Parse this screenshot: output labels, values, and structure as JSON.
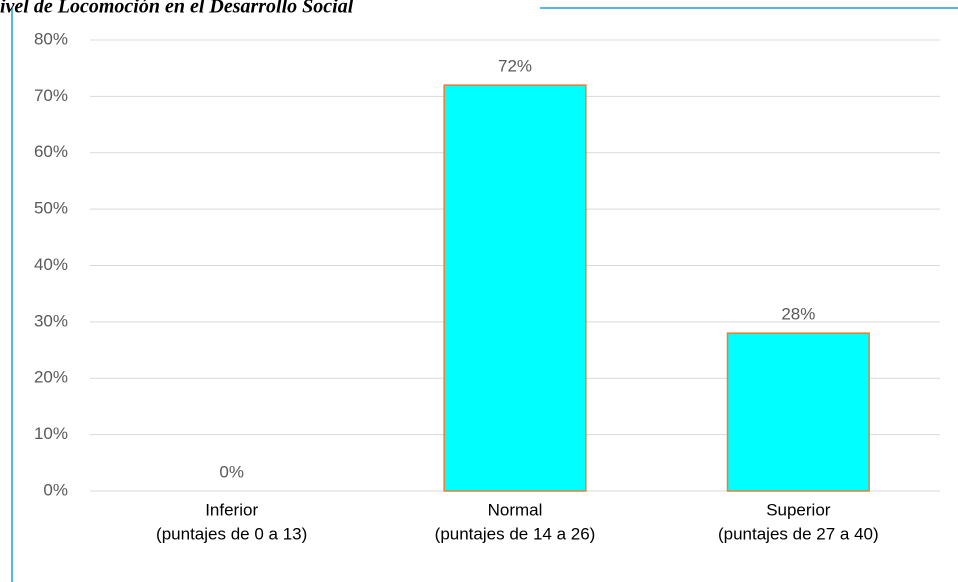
{
  "chart_data": {
    "type": "bar",
    "title": "ivel de Locomoción en el Desarrollo Social",
    "categories": [
      [
        "Inferior",
        "(puntajes de 0 a 13)"
      ],
      [
        "Normal",
        "(puntajes de 14 a 26)"
      ],
      [
        "Superior",
        "(puntajes de 27 a 40)"
      ]
    ],
    "values": [
      0,
      72,
      28
    ],
    "value_labels": [
      "0%",
      "72%",
      "28%"
    ],
    "color": "#00ffff",
    "edge_color": "#ed7d31",
    "ylim": [
      0,
      80
    ],
    "yticks": [
      {
        "value": 0,
        "label": "0%"
      },
      {
        "value": 10,
        "label": "10%"
      },
      {
        "value": 20,
        "label": "20%"
      },
      {
        "value": 30,
        "label": "30%"
      },
      {
        "value": 40,
        "label": "40%"
      },
      {
        "value": 50,
        "label": "50%"
      },
      {
        "value": 60,
        "label": "60%"
      },
      {
        "value": 70,
        "label": "70%"
      },
      {
        "value": 80,
        "label": "80%"
      }
    ],
    "grid": true
  }
}
